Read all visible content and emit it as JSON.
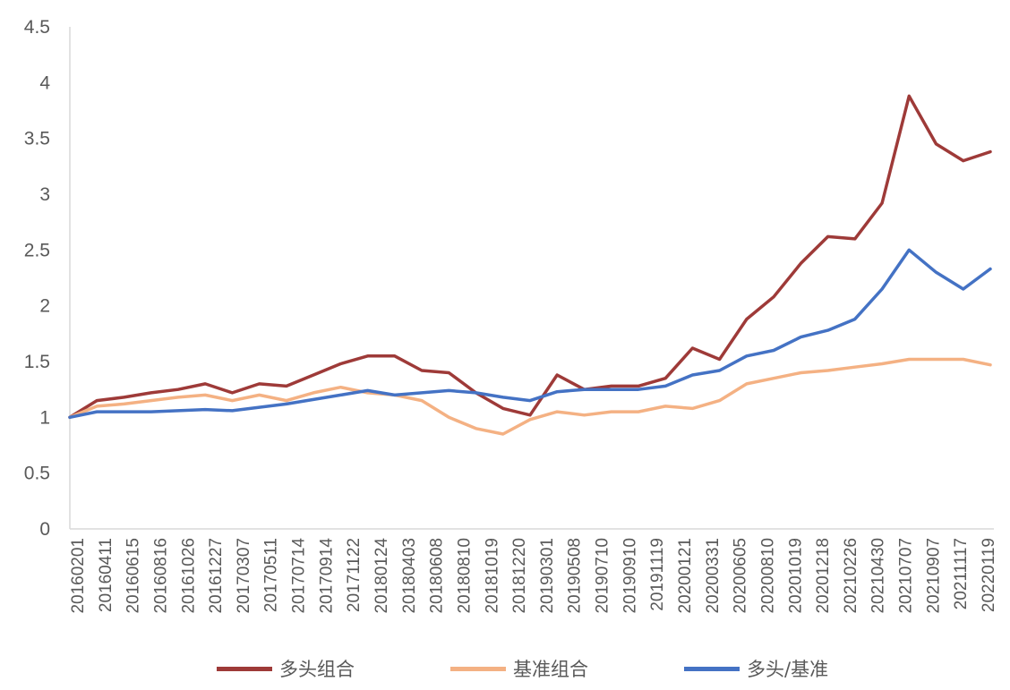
{
  "chart_data": {
    "type": "line",
    "title": "",
    "xlabel": "",
    "ylabel": "",
    "ylim": [
      0,
      4.5
    ],
    "yticks": [
      "0",
      "0.5",
      "1",
      "1.5",
      "2",
      "2.5",
      "3",
      "3.5",
      "4",
      "4.5"
    ],
    "x_tick_labels": [
      "20160201",
      "20160411",
      "20160615",
      "20160816",
      "20161026",
      "20161227",
      "20170307",
      "20170511",
      "20170714",
      "20170914",
      "20171122",
      "20180124",
      "20180403",
      "20180608",
      "20180810",
      "20181019",
      "20181220",
      "20190301",
      "20190508",
      "20190710",
      "20190910",
      "20191119",
      "20200121",
      "20200331",
      "20200605",
      "20200810",
      "20201019",
      "20201218",
      "20210226",
      "20210430",
      "20210707",
      "20210907",
      "20211117",
      "20220119"
    ],
    "legend_position": "bottom",
    "grid": false,
    "series": [
      {
        "name": "多头组合",
        "color": "#9E3A38",
        "values": [
          1.0,
          1.15,
          1.18,
          1.22,
          1.25,
          1.3,
          1.22,
          1.3,
          1.28,
          1.38,
          1.48,
          1.55,
          1.55,
          1.42,
          1.4,
          1.22,
          1.08,
          1.02,
          1.38,
          1.25,
          1.28,
          1.28,
          1.35,
          1.62,
          1.52,
          1.88,
          2.08,
          2.38,
          2.62,
          2.6,
          2.92,
          3.88,
          3.45,
          3.3,
          3.38
        ]
      },
      {
        "name": "基准组合",
        "color": "#F4B183",
        "values": [
          1.0,
          1.1,
          1.12,
          1.15,
          1.18,
          1.2,
          1.15,
          1.2,
          1.15,
          1.22,
          1.27,
          1.22,
          1.2,
          1.15,
          1.0,
          0.9,
          0.85,
          0.98,
          1.05,
          1.02,
          1.05,
          1.05,
          1.1,
          1.08,
          1.15,
          1.3,
          1.35,
          1.4,
          1.42,
          1.45,
          1.48,
          1.52,
          1.52,
          1.52,
          1.47
        ]
      },
      {
        "name": "多头/基准",
        "color": "#4472C4",
        "values": [
          1.0,
          1.05,
          1.05,
          1.05,
          1.06,
          1.07,
          1.06,
          1.09,
          1.12,
          1.16,
          1.2,
          1.24,
          1.2,
          1.22,
          1.24,
          1.22,
          1.18,
          1.15,
          1.23,
          1.25,
          1.25,
          1.25,
          1.28,
          1.38,
          1.42,
          1.55,
          1.6,
          1.72,
          1.78,
          1.88,
          2.15,
          2.5,
          2.3,
          2.15,
          2.33
        ]
      }
    ]
  }
}
